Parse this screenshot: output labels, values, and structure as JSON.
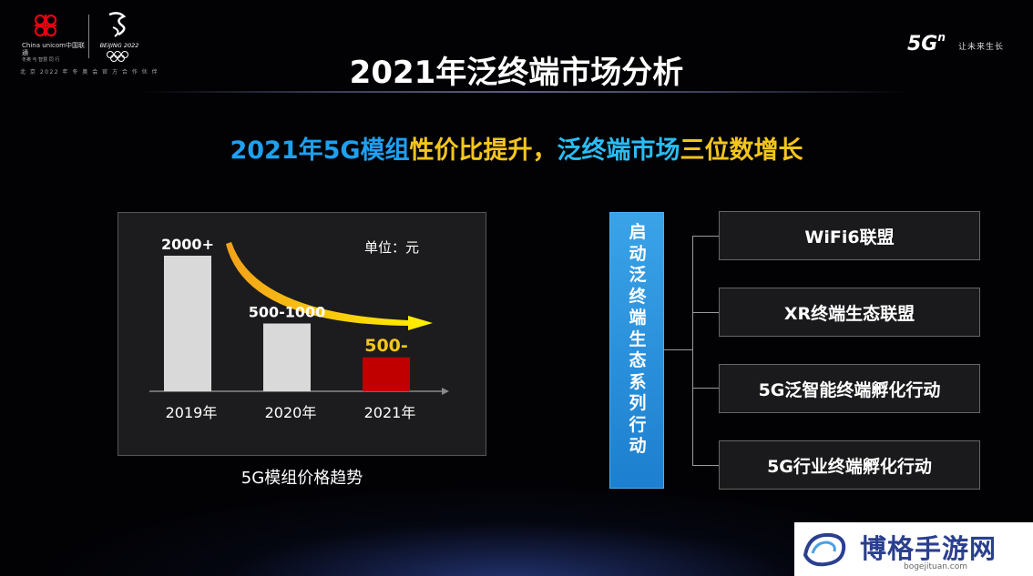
{
  "header": {
    "unicom_logo_text": "China unicom中国联通",
    "unicom_sub": "冬奥 与 智慧 同 行",
    "beijing_logo_text": "BEIJING 2022",
    "logo_slogan": "北 京 2022 年 冬 奥 会 官 方 合 作 伙 伴",
    "brand_5g": "5G",
    "brand_sup": "n",
    "brand_slogan": "让未来生长"
  },
  "title": "2021年泛终端市场分析",
  "subtitle": {
    "part1": "2021年5G模组",
    "part2": "性价比提升，",
    "part3": "泛终端市场",
    "part4": "三位数增长"
  },
  "chart_data": {
    "type": "bar",
    "categories": [
      "2019年",
      "2020年",
      "2021年"
    ],
    "values": [
      2000,
      1000,
      500
    ],
    "data_labels": [
      "2000+",
      "500-1000",
      "500-"
    ],
    "unit_label": "单位：元",
    "title": "5G模组价格趋势",
    "colors": [
      "#d9d9d9",
      "#d9d9d9",
      "#c00000"
    ],
    "label_colors": [
      "#ffffff",
      "#ffffff",
      "#f5c51c"
    ],
    "ylim": [
      0,
      2000
    ]
  },
  "ecosystem": {
    "label": [
      "启",
      "动",
      "泛",
      "终",
      "端",
      "生",
      "态",
      "系",
      "列",
      "行",
      "动"
    ],
    "items": [
      "WiFi6联盟",
      "XR终端生态联盟",
      "5G泛智能终端孵化行动",
      "5G行业终端孵化行动"
    ]
  },
  "watermark": {
    "name": "博格手游网",
    "url": "bogejituan.com"
  },
  "colors": {
    "accent_blue": "#1ea0f0",
    "accent_yellow": "#f5c51c",
    "highlight_red": "#c00000"
  }
}
